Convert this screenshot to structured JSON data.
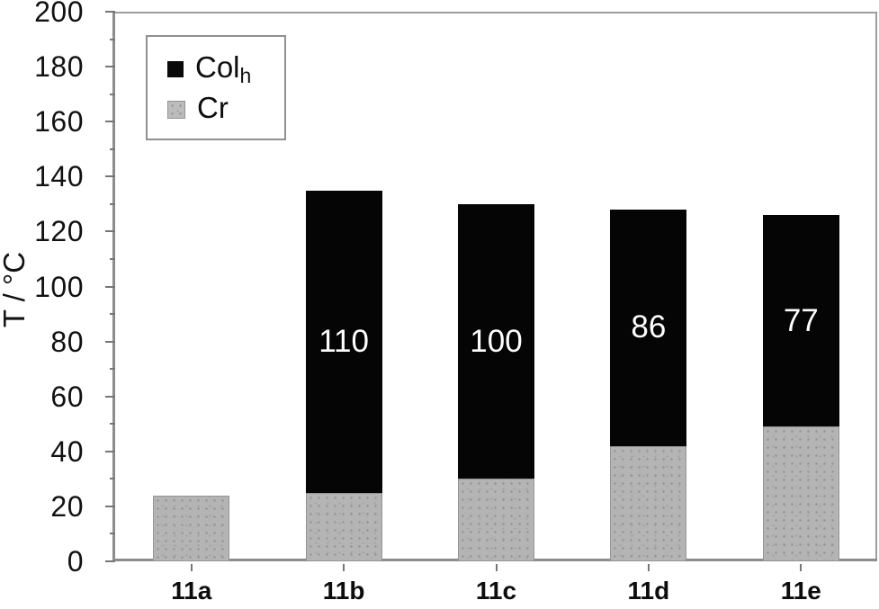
{
  "chart_data": {
    "type": "bar",
    "subtype": "stacked-vertical",
    "title": "",
    "xlabel": "",
    "ylabel": "T / °C",
    "ylim": [
      0,
      200
    ],
    "yticks": [
      0,
      20,
      40,
      60,
      80,
      100,
      120,
      140,
      160,
      180,
      200
    ],
    "ytick_minor_step": 10,
    "grid": "off",
    "categories": [
      "11a",
      "11b",
      "11c",
      "11d",
      "11e"
    ],
    "series": [
      {
        "name": "Cr",
        "color": "#b4b4b4",
        "pattern": "dots",
        "values": [
          24,
          25,
          30,
          42,
          49
        ]
      },
      {
        "name": "Colh",
        "color": "#050505",
        "pattern": "solid",
        "values": [
          0,
          110,
          100,
          86,
          77
        ]
      }
    ],
    "totals": [
      24,
      135,
      130,
      128,
      126
    ],
    "bar_labels": {
      "on_series": "Colh",
      "values": [
        "",
        "110",
        "100",
        "86",
        "77"
      ],
      "color": "#ffffff"
    },
    "legend": {
      "position": "top-left",
      "items": [
        {
          "label": "Col",
          "subscript": "h",
          "swatch_color": "#0a0a0a",
          "swatch_pattern": "solid"
        },
        {
          "label": "Cr",
          "subscript": "",
          "swatch_color": "#bcbcbc",
          "swatch_pattern": "dots"
        }
      ]
    },
    "colors": {
      "axis": "#8c8c8c",
      "frame": "#9e9e9e",
      "tick": "#767676",
      "text": "#121212"
    }
  }
}
